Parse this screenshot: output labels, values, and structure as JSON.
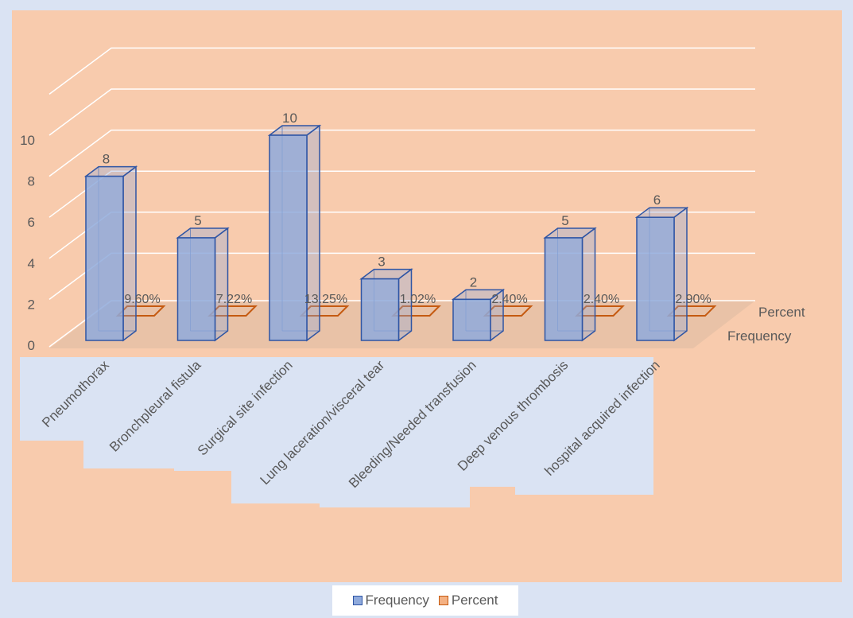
{
  "chart_data": {
    "type": "bar",
    "variant": "3d-column",
    "categories": [
      "Pneumothorax",
      "Bronchpleural fistula",
      "Surgical site infection",
      "Lung laceration/visceral tear",
      "Bleeding/Needed transfusion",
      "Deep venous thrombosis",
      "hospital acquired infection"
    ],
    "series": [
      {
        "name": "Frequency",
        "values": [
          8,
          5,
          10,
          3,
          2,
          5,
          6
        ],
        "data_labels": [
          "8",
          "5",
          "10",
          "3",
          "2",
          "5",
          "6"
        ],
        "color": "#8faadc",
        "edge_color": "#2f55a4"
      },
      {
        "name": "Percent",
        "values": [
          9.6,
          7.22,
          13.25,
          1.02,
          2.4,
          2.4,
          2.9
        ],
        "data_labels": [
          "9.60%",
          "7.22%",
          "13.25%",
          "1.02%",
          "2.40%",
          "2.40%",
          "2.90%"
        ],
        "color": "#f4b183",
        "edge_color": "#c55a11"
      }
    ],
    "ylim": [
      0,
      10
    ],
    "yticks": [
      "0",
      "2",
      "4",
      "6",
      "8",
      "10"
    ],
    "grid": true,
    "legend_position": "bottom",
    "plot_background": "#f8cbad",
    "page_background": "#dae3f3"
  }
}
